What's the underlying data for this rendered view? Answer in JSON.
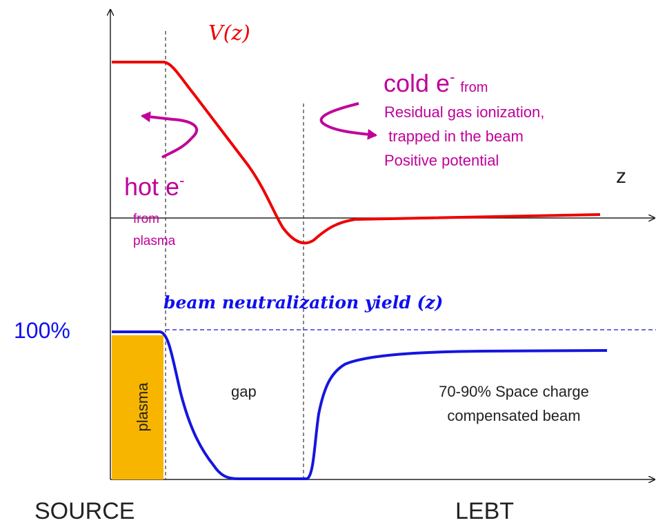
{
  "labels": {
    "potential": "V(z)",
    "z_axis": "z",
    "cold_electrons": {
      "main": "cold e",
      "sup": "-",
      "from": "from",
      "lines": [
        "Residual gas ionization,",
        " trapped in the beam",
        "Positive potential"
      ]
    },
    "hot_electrons": {
      "main": "hot e",
      "sup": "-",
      "lines": [
        "from",
        "plasma"
      ]
    },
    "yield": "beam neutralization yield (z)",
    "full": "100%",
    "plasma": "plasma",
    "gap": "gap",
    "compensated": [
      "70-90% Space charge",
      "compensated beam"
    ],
    "source": "SOURCE",
    "lebt": "LEBT"
  }
}
